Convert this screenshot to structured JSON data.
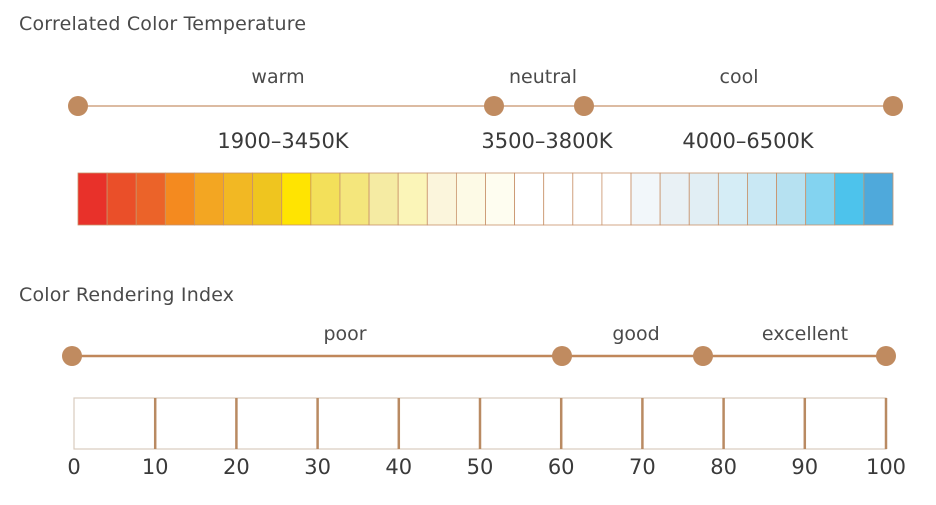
{
  "cct": {
    "title": "Correlated Color Temperature",
    "labels": [
      "warm",
      "neutral",
      "cool"
    ],
    "ranges": [
      "1900–3450K",
      "3500–3800K",
      "4000–6500K"
    ],
    "colors": [
      "#e8312a",
      "#ea4f29",
      "#eb6329",
      "#f48a1f",
      "#f3a622",
      "#f2b823",
      "#efc51f",
      "#ffe401",
      "#f3e05a",
      "#f4e67c",
      "#f5eba3",
      "#fbf5b8",
      "#fbf5dc",
      "#fdfae6",
      "#fefdf0",
      "#ffffff",
      "#ffffff",
      "#ffffff",
      "#ffffff",
      "#f2f7fa",
      "#e9f1f5",
      "#e1eef4",
      "#d5edf6",
      "#c9e8f4",
      "#b6e1f1",
      "#83d3f0",
      "#4dc3ec",
      "#4fa9db"
    ],
    "line_color": "#c8926a",
    "dot_color": "#c08b60"
  },
  "cri": {
    "title": "Color Rendering Index",
    "labels": [
      "poor",
      "good",
      "excellent"
    ],
    "ticks": [
      "0",
      "10",
      "20",
      "30",
      "40",
      "50",
      "60",
      "70",
      "80",
      "90",
      "100"
    ],
    "zone_boundaries": [
      0,
      60,
      78,
      100
    ],
    "line_color": "#c0875a",
    "dot_color": "#c08b60"
  }
}
